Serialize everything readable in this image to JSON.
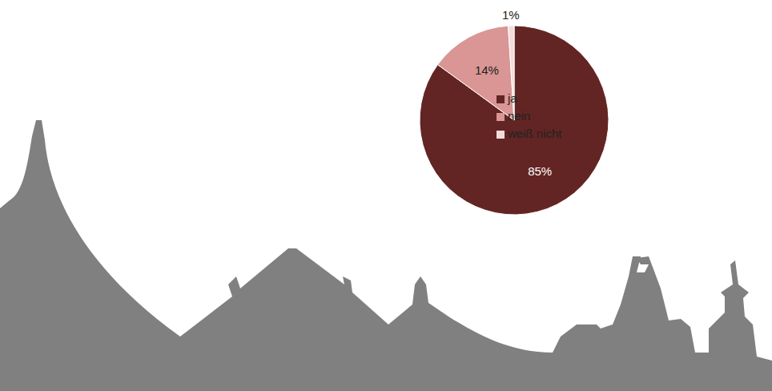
{
  "chart_data": {
    "type": "pie",
    "categories": [
      "ja",
      "nein",
      "weiß nicht"
    ],
    "values": [
      85,
      14,
      1
    ],
    "value_labels": [
      "85%",
      "14%",
      "1%"
    ],
    "colors": [
      "#632523",
      "#d99694",
      "#f2dcdb"
    ],
    "legend": "right",
    "data_labels": true
  }
}
